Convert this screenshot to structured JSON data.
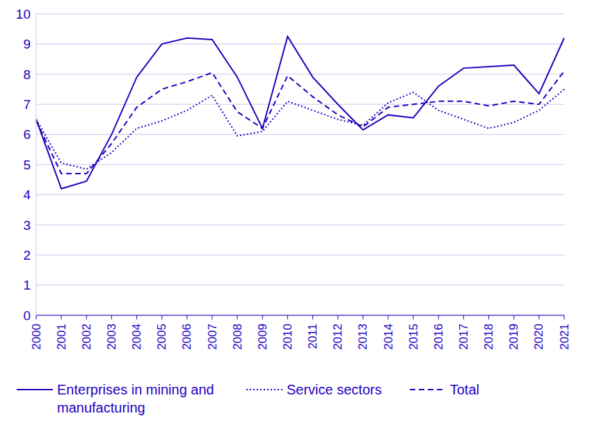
{
  "chart_data": {
    "type": "line",
    "categories": [
      "2000",
      "2001",
      "2002",
      "2003",
      "2004",
      "2005",
      "2006",
      "2007",
      "2008",
      "2009",
      "2010",
      "2011",
      "2012",
      "2013",
      "2014",
      "2015",
      "2016",
      "2017",
      "2018",
      "2019",
      "2020",
      "2021"
    ],
    "series": [
      {
        "name": "Enterprises in mining and manufacturing",
        "color": "#1e00be",
        "line_style": "solid",
        "values": [
          6.5,
          4.2,
          4.45,
          6.0,
          7.9,
          9.0,
          9.2,
          9.15,
          7.9,
          6.2,
          9.25,
          7.9,
          7.0,
          6.15,
          6.65,
          6.55,
          7.6,
          8.2,
          8.25,
          8.3,
          7.35,
          9.2
        ]
      },
      {
        "name": "Service sectors",
        "color": "#1e00be",
        "line_style": "dotted",
        "values": [
          6.5,
          5.05,
          4.85,
          5.4,
          6.2,
          6.45,
          6.8,
          7.3,
          5.95,
          6.1,
          7.1,
          6.8,
          6.5,
          6.3,
          7.05,
          7.4,
          6.8,
          6.5,
          6.2,
          6.4,
          6.8,
          7.5
        ]
      },
      {
        "name": "Total",
        "color": "#1e00be",
        "line_style": "dashed",
        "values": [
          6.45,
          4.7,
          4.7,
          5.7,
          6.9,
          7.5,
          7.75,
          8.05,
          6.75,
          6.2,
          7.95,
          7.25,
          6.65,
          6.25,
          6.9,
          7.0,
          7.1,
          7.1,
          6.95,
          7.1,
          7.0,
          8.1
        ]
      }
    ],
    "ylim": [
      0,
      10
    ],
    "yticks": [
      0,
      1,
      2,
      3,
      4,
      5,
      6,
      7,
      8,
      9,
      10
    ],
    "grid": true,
    "legend": "bottom"
  }
}
